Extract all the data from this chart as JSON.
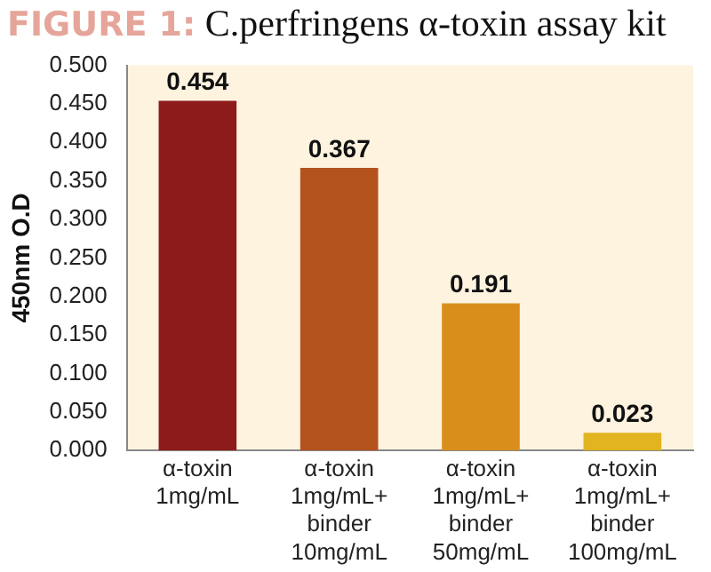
{
  "chart_data": {
    "type": "bar",
    "title": "FIGURE 1: C.perfringens α-toxin assay kit",
    "ylabel": "450nm O.D",
    "categories": [
      "α-toxin\n1mg/mL",
      "α-toxin\n1mg/mL+\nbinder\n10mg/mL",
      "α-toxin\n1mg/mL+\nbinder\n50mg/mL",
      "α-toxin\n1mg/mL+\nbinder\n100mg/mL"
    ],
    "values": [
      0.454,
      0.367,
      0.191,
      0.023
    ],
    "colors": [
      "#8e1b1b",
      "#b4521e",
      "#d98e1c",
      "#e2b41f"
    ],
    "data_labels": true,
    "grid": false,
    "legend": false,
    "ylim": [
      0,
      0.5
    ],
    "yticks": [
      {
        "value": 0,
        "label": "0.000"
      },
      {
        "value": 0.05,
        "label": "0.050"
      },
      {
        "value": 0.1,
        "label": "0.100"
      },
      {
        "value": 0.15,
        "label": "0.150"
      },
      {
        "value": 0.2,
        "label": "0.200"
      },
      {
        "value": 0.25,
        "label": "0.250"
      },
      {
        "value": 0.3,
        "label": "0.300"
      },
      {
        "value": 0.35,
        "label": "0.350"
      },
      {
        "value": 0.4,
        "label": "0.400"
      },
      {
        "value": 0.45,
        "label": "0.450"
      },
      {
        "value": 0.5,
        "label": "0.500"
      }
    ]
  }
}
